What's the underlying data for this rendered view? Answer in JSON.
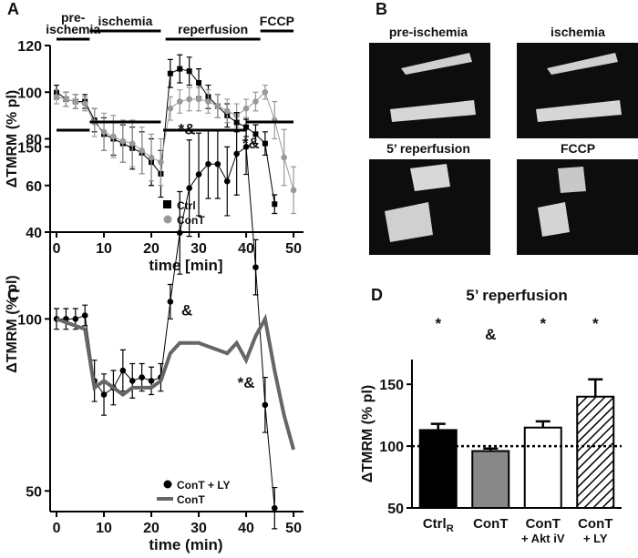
{
  "chart_data": [
    {
      "type": "line",
      "panel_label": "A",
      "x_label": "time [min]",
      "y_label": "ΔTMRM (% pl)",
      "xlim": [
        -1.35,
        52.1
      ],
      "xticks": [
        0,
        10,
        20,
        30,
        40,
        50
      ],
      "ylim": [
        40,
        120
      ],
      "yticks": [
        40,
        60,
        80,
        100,
        120
      ],
      "legend": "lower center",
      "phases": [
        {
          "label": [
            "pre-",
            "ischemia"
          ],
          "start": 0,
          "end": 7
        },
        {
          "label": [
            "ischemia"
          ],
          "start": 7,
          "end": 22
        },
        {
          "label": [
            "reperfusion"
          ],
          "start": 23,
          "end": 43
        },
        {
          "label": [
            "FCCP"
          ],
          "start": 43,
          "end": 50
        }
      ],
      "annotations": [
        {
          "text": "*&",
          "x": 27.5,
          "y": 82
        },
        {
          "text": "*&",
          "x": 41,
          "y": 76
        }
      ],
      "x": [
        0,
        2,
        4,
        6,
        8,
        10,
        12,
        14,
        16,
        18,
        20,
        22,
        24,
        26,
        28,
        30,
        32,
        34,
        36,
        38,
        40,
        42,
        44,
        46,
        48,
        50
      ],
      "series": [
        {
          "name": "Ctrl",
          "color": "#000000",
          "marker": "square",
          "line_width": 1,
          "values": [
            100,
            97,
            96,
            96,
            88,
            82,
            80,
            78,
            76,
            74,
            70,
            65,
            108,
            110,
            109,
            104,
            98,
            94,
            90,
            87,
            85,
            82,
            78,
            52,
            null,
            null
          ],
          "errors": [
            3,
            3,
            3,
            3,
            5,
            7,
            7,
            8,
            9,
            9,
            10,
            10,
            6,
            6,
            6,
            6,
            5,
            5,
            5,
            4,
            4,
            4,
            5,
            4,
            null,
            null
          ]
        },
        {
          "name": "ConT",
          "color": "#999999",
          "marker": "circle",
          "line_width": 1,
          "values": [
            98,
            97,
            96,
            95,
            87,
            83,
            81,
            79,
            78,
            75,
            72,
            70,
            93,
            96,
            97,
            97,
            96,
            94,
            92,
            90,
            93,
            96,
            100,
            88,
            72,
            58
          ],
          "errors": [
            3,
            3,
            3,
            3,
            6,
            8,
            9,
            9,
            10,
            10,
            10,
            10,
            5,
            5,
            5,
            5,
            5,
            5,
            5,
            5,
            4,
            4,
            3,
            8,
            12,
            10
          ]
        }
      ]
    },
    {
      "type": "line",
      "panel_label": "C",
      "x_label": "time (min)",
      "y_label": "ΔTMRM  (% pl)",
      "xlim": [
        -1.35,
        52.1
      ],
      "xticks": [
        0,
        10,
        20,
        30,
        40,
        50
      ],
      "ylim": [
        44,
        153
      ],
      "yticks": [
        50,
        100,
        150
      ],
      "legend": "lower center",
      "phases": [
        {
          "start": 0,
          "end": 7
        },
        {
          "start": 7,
          "end": 22
        },
        {
          "start": 22.5,
          "end": 40
        },
        {
          "start": 40,
          "end": 50
        }
      ],
      "annotations": [
        {
          "text": "&",
          "x": 27.5,
          "y": 101
        },
        {
          "text": "*&",
          "x": 40,
          "y": 80
        }
      ],
      "x": [
        0,
        2,
        4,
        6,
        8,
        10,
        12,
        14,
        16,
        18,
        20,
        22,
        24,
        26,
        28,
        30,
        32,
        34,
        36,
        38,
        40,
        42,
        44,
        46,
        48,
        50
      ],
      "series": [
        {
          "name": "ConT + LY",
          "color": "#000000",
          "marker": "circle",
          "line_width": 1,
          "values": [
            100,
            100,
            100,
            101,
            82,
            78,
            80,
            85,
            82,
            83,
            82,
            83,
            105,
            125,
            138,
            142,
            145,
            145,
            140,
            148,
            150,
            115,
            75,
            45,
            null,
            null
          ],
          "errors": [
            3,
            3,
            3,
            3,
            6,
            6,
            5,
            6,
            5,
            4,
            4,
            4,
            5,
            12,
            14,
            12,
            10,
            10,
            10,
            12,
            8,
            8,
            8,
            6,
            null,
            null
          ]
        },
        {
          "name": "ConT",
          "color": "#666666",
          "line_width": 4,
          "values": [
            100,
            99,
            98,
            97,
            80,
            82,
            80,
            78,
            80,
            80,
            80,
            82,
            90,
            93,
            93,
            93,
            92,
            91,
            90,
            93,
            88,
            95,
            100,
            85,
            72,
            62
          ]
        }
      ]
    },
    {
      "type": "bar",
      "panel_label": "D",
      "title": "5’ reperfusion",
      "y_label": "ΔTMRM (% pl)",
      "categories": [
        [
          "Ctrl"
        ],
        [
          "ConT"
        ],
        [
          "ConT",
          "+ Akt iV"
        ],
        [
          "ConT",
          "+ LY"
        ]
      ],
      "subscripts": [
        "R",
        null,
        null,
        null
      ],
      "significance": [
        "*",
        "&",
        "*",
        "*"
      ],
      "values": [
        113,
        96,
        115,
        140
      ],
      "errors": [
        5,
        2,
        5,
        14
      ],
      "colors": [
        "#000000",
        "#888888",
        "#ffffff",
        "hatch"
      ],
      "reference_line": 100,
      "ylim": [
        50,
        170
      ],
      "yticks": [
        50,
        100,
        150
      ]
    }
  ],
  "images": {
    "panel_label": "B",
    "captions": [
      "pre-ischemia",
      "ischemia",
      "5’ reperfusion",
      "FCCP"
    ]
  }
}
